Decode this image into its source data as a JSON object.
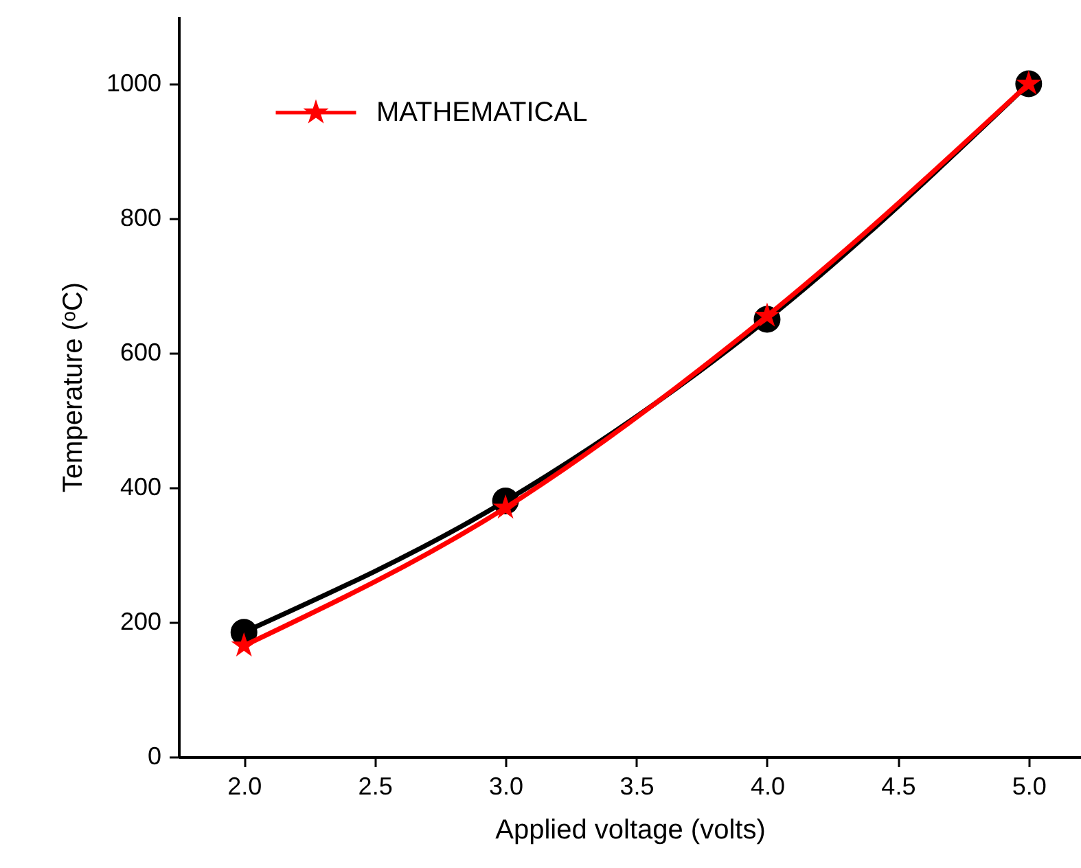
{
  "chart_data": {
    "type": "line",
    "xlabel": "Applied voltage (volts)",
    "ylabel": "Temperature (ᵒC)",
    "x": [
      2.0,
      3.0,
      4.0,
      5.0
    ],
    "series": [
      {
        "color": "#000000",
        "marker": "circle",
        "values": [
          185,
          380,
          650,
          1000
        ]
      },
      {
        "name": "MATHEMATICAL",
        "color": "#ff0000",
        "marker": "star",
        "values": [
          165,
          370,
          655,
          1000
        ]
      }
    ],
    "xlim": [
      1.75,
      5.2
    ],
    "xticks": [
      {
        "value": 2,
        "label": "2.0"
      },
      {
        "value": 2.5,
        "label": "2.5"
      },
      {
        "value": 3,
        "label": "3.0"
      },
      {
        "value": 3.5,
        "label": "3.5"
      },
      {
        "value": 4,
        "label": "4.0"
      },
      {
        "value": 4.5,
        "label": "4.5"
      },
      {
        "value": 5,
        "label": "5.0"
      }
    ],
    "ylim": [
      0,
      1100
    ],
    "yticks": [
      0,
      200,
      400,
      600,
      800,
      1000
    ],
    "grid": false,
    "legend": "top left",
    "line_style": "solid"
  }
}
